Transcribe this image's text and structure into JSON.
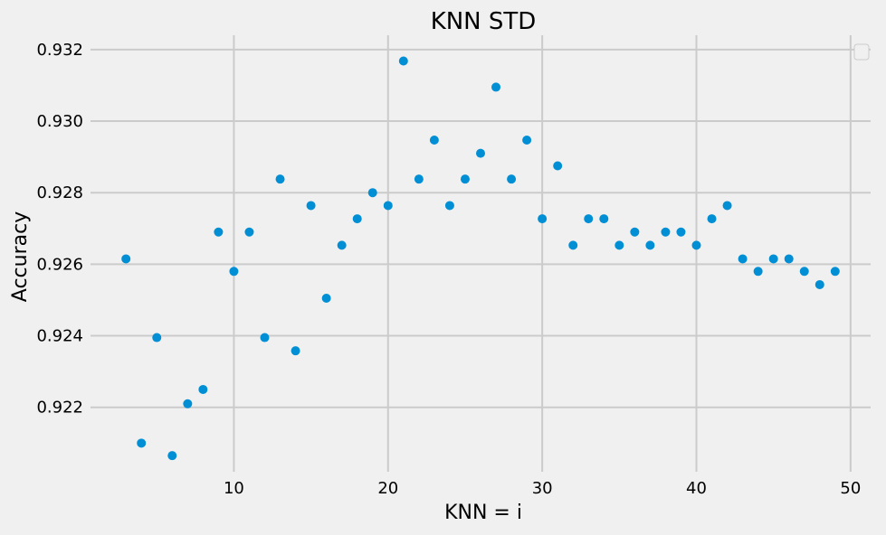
{
  "colors": {
    "background": "#f0f0f0",
    "grid": "#cbcbcb",
    "point": "#008fd5",
    "text": "#000000"
  },
  "chart_data": {
    "type": "scatter",
    "title": "KNN STD",
    "xlabel": "KNN = i",
    "ylabel": "Accuracy",
    "xlim": [
      0.7,
      51.3
    ],
    "ylim": [
      0.9202,
      0.9324
    ],
    "xticks": [
      10,
      20,
      30,
      40,
      50
    ],
    "xtick_labels": [
      "10",
      "20",
      "30",
      "40",
      "50"
    ],
    "yticks": [
      0.922,
      0.924,
      0.926,
      0.928,
      0.93,
      0.932
    ],
    "ytick_labels": [
      "0.922",
      "0.924",
      "0.926",
      "0.928",
      "0.930",
      "0.932"
    ],
    "grid": true,
    "legend": "top-right, empty",
    "series": [
      {
        "x": [
          3,
          4,
          5,
          6,
          7,
          8,
          9,
          10,
          11,
          12,
          13,
          14,
          15,
          16,
          17,
          18,
          19,
          20,
          21,
          22,
          23,
          24,
          25,
          26,
          27,
          28,
          29,
          30,
          31,
          32,
          33,
          34,
          35,
          36,
          37,
          38,
          39,
          40,
          41,
          42,
          43,
          44,
          45,
          46,
          47,
          48,
          49
        ],
        "y": [
          0.92615,
          0.921,
          0.92395,
          0.92065,
          0.9221,
          0.9225,
          0.9269,
          0.9258,
          0.9269,
          0.92395,
          0.92838,
          0.92358,
          0.92764,
          0.92505,
          0.92653,
          0.92727,
          0.928,
          0.92764,
          0.93168,
          0.92838,
          0.92947,
          0.92764,
          0.92838,
          0.9291,
          0.93095,
          0.92838,
          0.92947,
          0.92727,
          0.92875,
          0.92653,
          0.92727,
          0.92727,
          0.92653,
          0.9269,
          0.92653,
          0.9269,
          0.9269,
          0.92653,
          0.92727,
          0.92764,
          0.92615,
          0.9258,
          0.92615,
          0.92615,
          0.9258,
          0.92543,
          0.9258
        ]
      }
    ]
  }
}
